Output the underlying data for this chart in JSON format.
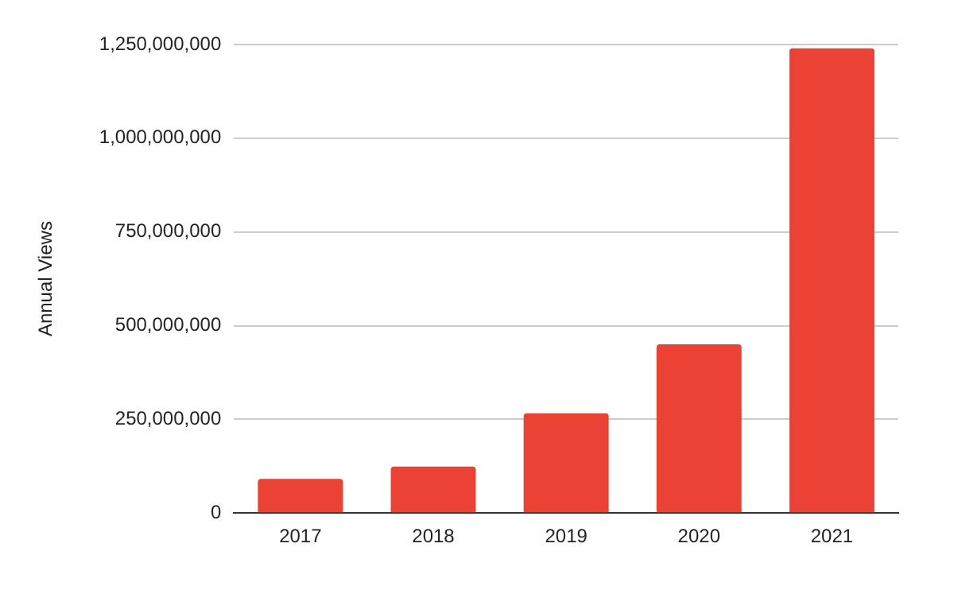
{
  "chart_data": {
    "type": "bar",
    "ylabel": "Annual Views",
    "categories": [
      "2017",
      "2018",
      "2019",
      "2020",
      "2021"
    ],
    "values": [
      91000000,
      124000000,
      266000000,
      450000000,
      1240000000
    ],
    "color": "#ea4335",
    "ylim": [
      0,
      1250000000
    ],
    "yticks": [
      0,
      {
        "value": 250000000,
        "label": "250,000,000"
      },
      {
        "value": 500000000,
        "label": "500,000,000"
      },
      {
        "value": 750000000,
        "label": "750,000,000"
      },
      {
        "value": 1000000000,
        "label": "1,000,000,000"
      },
      {
        "value": 1250000000,
        "label": "1,250,000,000"
      }
    ],
    "grid": "y",
    "legend": false
  }
}
